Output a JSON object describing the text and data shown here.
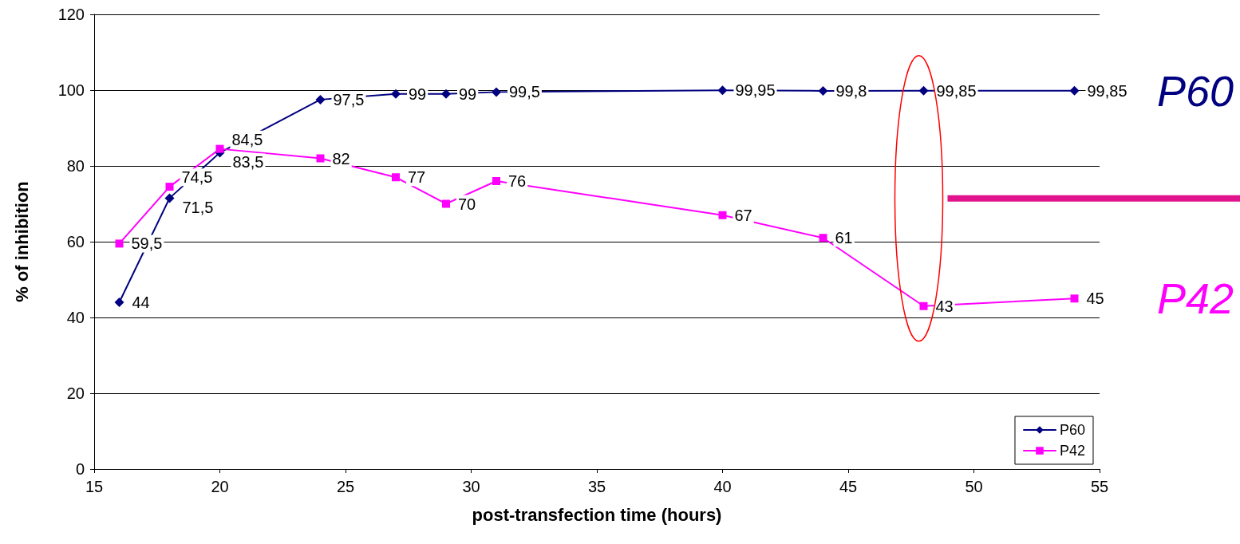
{
  "chart_data": {
    "type": "line",
    "xlabel": "post-transfection time (hours)",
    "ylabel": "% of inhibition",
    "x": [
      16,
      18,
      20,
      24,
      27,
      29,
      31,
      40,
      44,
      48,
      54
    ],
    "series": [
      {
        "name": "P60",
        "color": "#000080",
        "marker": "diamond",
        "values": [
          44,
          71.5,
          83.5,
          97.5,
          99,
          99,
          99.5,
          99.95,
          99.8,
          99.85,
          99.85
        ],
        "value_labels": [
          "44",
          "71,5",
          "83,5",
          "97,5",
          "99",
          "99",
          "99,5",
          "99,95",
          "99,8",
          "99,85",
          "99,85"
        ]
      },
      {
        "name": "P42",
        "color": "#ff00ff",
        "marker": "square",
        "values": [
          59.5,
          74.5,
          84.5,
          82,
          77,
          70,
          76,
          67,
          61,
          43,
          45
        ],
        "value_labels": [
          "59,5",
          "74,5",
          "84,5",
          "82",
          "77",
          "70",
          "76",
          "67",
          "61",
          "43",
          "45"
        ]
      }
    ],
    "annotations": [
      "P60",
      "P42"
    ],
    "xlim": [
      15,
      55
    ],
    "xticks": [
      15,
      20,
      25,
      30,
      35,
      40,
      45,
      50,
      55
    ],
    "ylim": [
      0,
      120
    ],
    "yticks": [
      0,
      20,
      40,
      60,
      80,
      100,
      120
    ],
    "grid": "y",
    "legend": "bottom right",
    "line_style": "solid"
  }
}
